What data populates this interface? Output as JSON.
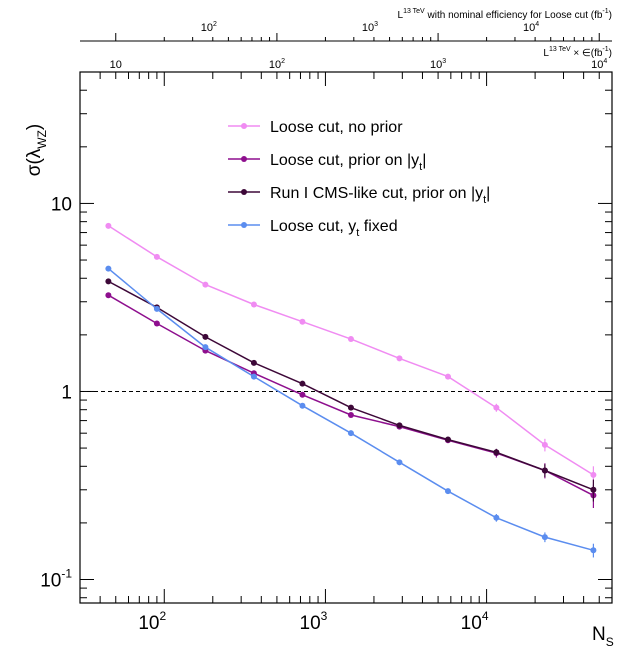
{
  "chart_data": {
    "type": "line",
    "xlabel_main": "N",
    "xlabel_sub": "S",
    "ylabel_prefix": "σ(λ",
    "ylabel_sub": "WZ",
    "ylabel_suffix": ")",
    "x_scale": "log",
    "y_scale": "log",
    "xlim": [
      30,
      60000
    ],
    "ylim": [
      0.075,
      50
    ],
    "x_ticks": [
      {
        "value": 100,
        "base": "10",
        "exp": "2"
      },
      {
        "value": 1000,
        "base": "10",
        "exp": "3"
      },
      {
        "value": 10000,
        "base": "10",
        "exp": "4"
      }
    ],
    "y_ticks": [
      {
        "value": 0.1,
        "base": "10",
        "exp": "-1"
      },
      {
        "value": 1,
        "base": "1",
        "exp": ""
      },
      {
        "value": 10,
        "base": "10",
        "exp": ""
      }
    ],
    "reference_line": {
      "y": 1,
      "style": "dashed"
    },
    "top_axis_1": {
      "label_main": "L",
      "label_sup": "13 TeV",
      "label_rest": "with nominal efficiency for Loose cut (fb",
      "label_unit_sup": "-1",
      "label_close": ")",
      "ticks": [
        {
          "x": 200,
          "base": "10",
          "exp": "2"
        },
        {
          "x": 2000,
          "base": "10",
          "exp": "3"
        },
        {
          "x": 20000,
          "base": "10",
          "exp": "4"
        }
      ]
    },
    "top_axis_2": {
      "label_main": "L",
      "label_sup": "13 TeV",
      "label_rest": "× ∈(fb",
      "label_unit_sup": "-1",
      "label_close": ")",
      "ticks": [
        {
          "x": 50,
          "base": "10",
          "exp": ""
        },
        {
          "x": 500,
          "base": "10",
          "exp": "2"
        },
        {
          "x": 5000,
          "base": "10",
          "exp": "3"
        },
        {
          "x": 50000,
          "base": "10",
          "exp": "4"
        }
      ]
    },
    "x": [
      45,
      90,
      180,
      360,
      720,
      1440,
      2880,
      5760,
      11500,
      23000,
      46000
    ],
    "legend_position": "top-center",
    "series": [
      {
        "name": "Loose cut, no prior",
        "label_main": "Loose cut, no prior",
        "label_sub": "",
        "label_tail": "",
        "color": "#f08cf2",
        "values": [
          7.6,
          5.2,
          3.7,
          2.9,
          2.35,
          1.9,
          1.5,
          1.2,
          0.82,
          0.52,
          0.36
        ],
        "errors": [
          0,
          0,
          0,
          0,
          0,
          0,
          0,
          0.03,
          0.04,
          0.04,
          0.04
        ]
      },
      {
        "name": "Loose cut, prior on |yt|",
        "label_main": "Loose cut, prior on |y",
        "label_sub": "t",
        "label_tail": "|",
        "color": "#8e0f8e",
        "values": [
          3.25,
          2.3,
          1.65,
          1.25,
          0.96,
          0.75,
          0.65,
          0.55,
          0.47,
          0.38,
          0.28
        ],
        "errors": [
          0,
          0,
          0,
          0,
          0,
          0,
          0,
          0,
          0.025,
          0.035,
          0.04
        ]
      },
      {
        "name": "Run I CMS-like cut, prior on |yt|",
        "label_main": "Run I CMS-like cut, prior on |y",
        "label_sub": "t",
        "label_tail": "|",
        "color": "#3d0838",
        "values": [
          3.85,
          2.8,
          1.95,
          1.42,
          1.1,
          0.82,
          0.66,
          0.555,
          0.475,
          0.38,
          0.3
        ],
        "errors": [
          0,
          0,
          0,
          0,
          0,
          0,
          0,
          0,
          0.02,
          0.03,
          0.04
        ]
      },
      {
        "name": "Loose cut, yt fixed",
        "label_main": "Loose cut, y",
        "label_sub": "t",
        "label_tail": " fixed",
        "color": "#5b8def",
        "values": [
          4.5,
          2.75,
          1.72,
          1.2,
          0.84,
          0.6,
          0.42,
          0.295,
          0.213,
          0.168,
          0.143
        ],
        "errors": [
          0,
          0,
          0,
          0,
          0,
          0,
          0,
          0.01,
          0.01,
          0.01,
          0.012
        ]
      }
    ]
  }
}
